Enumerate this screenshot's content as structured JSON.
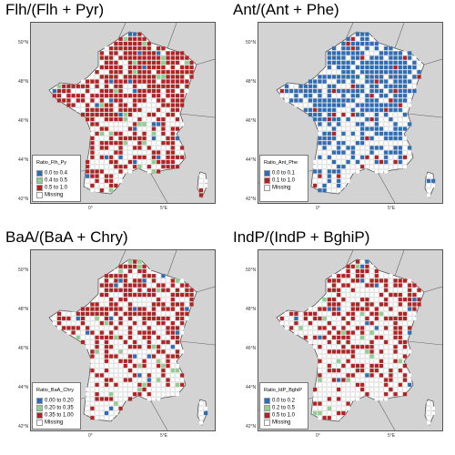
{
  "panels": [
    {
      "title": "Flh/(Flh + Pyr)",
      "legend_title": "Ratio_Flh_Py",
      "classes": [
        {
          "label": "0.0 to 0.4",
          "color": "#2e6db5"
        },
        {
          "label": "0.4 to 0.5",
          "color": "#8fd08f"
        },
        {
          "label": "0.5 to 1.0",
          "color": "#b22222"
        },
        {
          "label": "Missing",
          "color": "#ffffff"
        }
      ],
      "dominant_class": 2,
      "north_density": 0.95,
      "south_density": 0.35
    },
    {
      "title": "Ant/(Ant + Phe)",
      "legend_title": "Ratio_Ant_Phe",
      "classes": [
        {
          "label": "0.0 to 0.1",
          "color": "#2e6db5"
        },
        {
          "label": "0.1 to 1.0",
          "color": "#b22222"
        },
        {
          "label": "Missing",
          "color": "#ffffff"
        }
      ],
      "dominant_class": 0,
      "north_density": 0.9,
      "south_density": 0.3
    },
    {
      "title": "BaA/(BaA + Chry)",
      "legend_title": "Ratio_BaA_Chry",
      "classes": [
        {
          "label": "0.00 to 0.20",
          "color": "#2e6db5"
        },
        {
          "label": "0.20 to 0.35",
          "color": "#8fd08f"
        },
        {
          "label": "0.35 to 1.00",
          "color": "#b22222"
        },
        {
          "label": "Missing",
          "color": "#ffffff"
        }
      ],
      "dominant_class": 2,
      "north_density": 0.75,
      "south_density": 0.15
    },
    {
      "title": "IndP/(IndP + BghiP)",
      "legend_title": "Ratio_IdP_BghiP",
      "classes": [
        {
          "label": "0.0 to 0.2",
          "color": "#2e6db5"
        },
        {
          "label": "0.2 to 0.5",
          "color": "#8fd08f"
        },
        {
          "label": "0.5 to 1.0",
          "color": "#b22222"
        },
        {
          "label": "Missing",
          "color": "#ffffff"
        }
      ],
      "dominant_class": 2,
      "north_density": 0.6,
      "south_density": 0.2
    }
  ],
  "lat_labels": [
    "50°N",
    "48°N",
    "46°N",
    "44°N",
    "42°N"
  ],
  "lon_labels": [
    "0°",
    "5°E"
  ],
  "colors": {
    "land": "#ffffff",
    "sea": "#d3d3d3",
    "border": "#555555"
  }
}
